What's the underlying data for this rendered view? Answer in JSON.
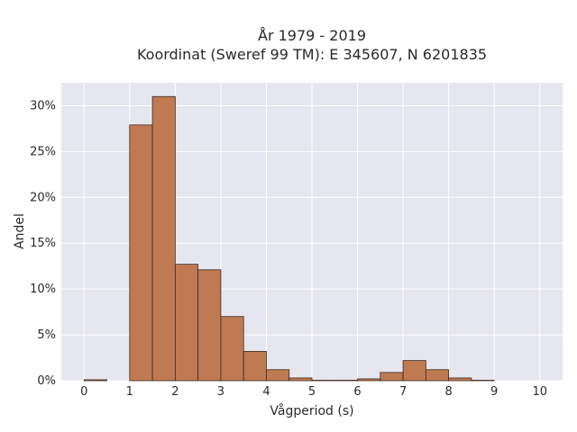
{
  "chart_data": {
    "type": "bar",
    "title": "År 1979 - 2019",
    "subtitle": "Koordinat (Sweref 99 TM): E 345607, N 6201835",
    "xlabel": "Vågperiod (s)",
    "ylabel": "Andel",
    "xlim": [
      -0.5,
      10.5
    ],
    "ylim": [
      0,
      32.5
    ],
    "x_ticks": [
      0,
      1,
      2,
      3,
      4,
      5,
      6,
      7,
      8,
      9,
      10
    ],
    "y_ticks": [
      0,
      5,
      10,
      15,
      20,
      25,
      30
    ],
    "y_tick_suffix": "%",
    "grid": true,
    "bar_color": "#bf7a52",
    "background_color": "#e6e6ef",
    "bins": [
      {
        "x0": 0.0,
        "x1": 0.5,
        "value": 0.1
      },
      {
        "x0": 0.5,
        "x1": 1.0,
        "value": 0.0
      },
      {
        "x0": 1.0,
        "x1": 1.5,
        "value": 27.9
      },
      {
        "x0": 1.5,
        "x1": 2.0,
        "value": 31.0
      },
      {
        "x0": 2.0,
        "x1": 2.5,
        "value": 12.7
      },
      {
        "x0": 2.5,
        "x1": 3.0,
        "value": 12.1
      },
      {
        "x0": 3.0,
        "x1": 3.5,
        "value": 7.0
      },
      {
        "x0": 3.5,
        "x1": 4.0,
        "value": 3.2
      },
      {
        "x0": 4.0,
        "x1": 4.5,
        "value": 1.2
      },
      {
        "x0": 4.5,
        "x1": 5.0,
        "value": 0.3
      },
      {
        "x0": 5.0,
        "x1": 5.5,
        "value": 0.05
      },
      {
        "x0": 5.5,
        "x1": 6.0,
        "value": 0.05
      },
      {
        "x0": 6.0,
        "x1": 6.5,
        "value": 0.2
      },
      {
        "x0": 6.5,
        "x1": 7.0,
        "value": 0.9
      },
      {
        "x0": 7.0,
        "x1": 7.5,
        "value": 2.2
      },
      {
        "x0": 7.5,
        "x1": 8.0,
        "value": 1.2
      },
      {
        "x0": 8.0,
        "x1": 8.5,
        "value": 0.3
      },
      {
        "x0": 8.5,
        "x1": 9.0,
        "value": 0.05
      }
    ]
  }
}
